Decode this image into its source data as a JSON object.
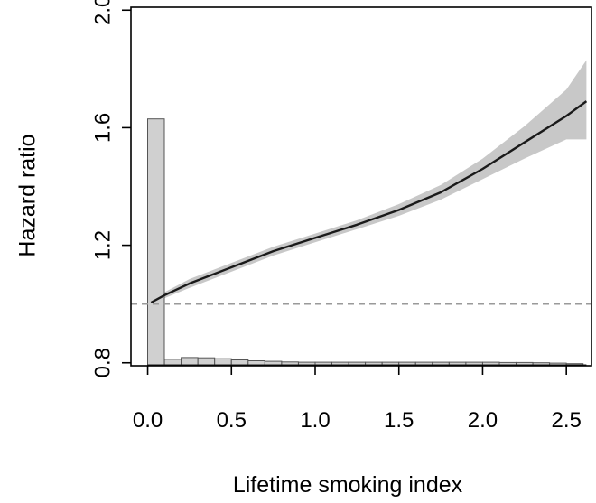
{
  "chart_data": {
    "type": "line",
    "title": "",
    "xlabel": "Lifetime smoking index",
    "ylabel": "Hazard ratio",
    "xlim": [
      -0.1,
      2.65
    ],
    "ylim": [
      0.79,
      2.01
    ],
    "x_ticks": [
      "0.0",
      "0.5",
      "1.0",
      "1.5",
      "2.0",
      "2.5"
    ],
    "y_ticks": [
      "0.8",
      "1.2",
      "1.6",
      "2.0"
    ],
    "reference_line": {
      "y": 1.0,
      "style": "dashed",
      "color": "#9a9a9a"
    },
    "series": [
      {
        "name": "Hazard ratio",
        "x": [
          0.02,
          0.1,
          0.25,
          0.5,
          0.75,
          1.0,
          1.25,
          1.5,
          1.75,
          2.0,
          2.25,
          2.5,
          2.62
        ],
        "y": [
          1.005,
          1.03,
          1.07,
          1.125,
          1.18,
          1.225,
          1.27,
          1.32,
          1.38,
          1.46,
          1.55,
          1.64,
          1.69
        ],
        "lower": [
          1.0,
          1.02,
          1.055,
          1.11,
          1.165,
          1.21,
          1.255,
          1.3,
          1.355,
          1.425,
          1.495,
          1.56,
          1.56
        ],
        "upper": [
          1.01,
          1.04,
          1.085,
          1.14,
          1.195,
          1.24,
          1.285,
          1.34,
          1.405,
          1.495,
          1.605,
          1.73,
          1.83
        ]
      }
    ],
    "histogram": {
      "bins": [
        {
          "x0": 0.0,
          "x1": 0.1,
          "height": 1.63
        },
        {
          "x0": 0.1,
          "x1": 0.2,
          "height": 0.812
        },
        {
          "x0": 0.2,
          "x1": 0.3,
          "height": 0.818
        },
        {
          "x0": 0.3,
          "x1": 0.4,
          "height": 0.817
        },
        {
          "x0": 0.4,
          "x1": 0.5,
          "height": 0.814
        },
        {
          "x0": 0.5,
          "x1": 0.6,
          "height": 0.81
        },
        {
          "x0": 0.6,
          "x1": 0.7,
          "height": 0.807
        },
        {
          "x0": 0.7,
          "x1": 0.8,
          "height": 0.805
        },
        {
          "x0": 0.8,
          "x1": 0.9,
          "height": 0.803
        },
        {
          "x0": 0.9,
          "x1": 1.0,
          "height": 0.802
        },
        {
          "x0": 1.0,
          "x1": 1.1,
          "height": 0.802
        },
        {
          "x0": 1.1,
          "x1": 1.2,
          "height": 0.802
        },
        {
          "x0": 1.2,
          "x1": 1.3,
          "height": 0.802
        },
        {
          "x0": 1.3,
          "x1": 1.4,
          "height": 0.802
        },
        {
          "x0": 1.4,
          "x1": 1.5,
          "height": 0.802
        },
        {
          "x0": 1.5,
          "x1": 1.6,
          "height": 0.802
        },
        {
          "x0": 1.6,
          "x1": 1.7,
          "height": 0.802
        },
        {
          "x0": 1.7,
          "x1": 1.8,
          "height": 0.802
        },
        {
          "x0": 1.8,
          "x1": 1.9,
          "height": 0.802
        },
        {
          "x0": 1.9,
          "x1": 2.0,
          "height": 0.802
        },
        {
          "x0": 2.0,
          "x1": 2.1,
          "height": 0.802
        },
        {
          "x0": 2.1,
          "x1": 2.2,
          "height": 0.801
        },
        {
          "x0": 2.2,
          "x1": 2.3,
          "height": 0.801
        },
        {
          "x0": 2.3,
          "x1": 2.4,
          "height": 0.8
        },
        {
          "x0": 2.4,
          "x1": 2.5,
          "height": 0.799
        },
        {
          "x0": 2.5,
          "x1": 2.6,
          "height": 0.797
        }
      ],
      "baseline": 0.792
    },
    "colors": {
      "line": "#1a1a1a",
      "band": "#c8c8c8",
      "hist_fill": "#d0d0d0",
      "hist_stroke": "#555555",
      "axis": "#000000"
    },
    "grid": false
  }
}
